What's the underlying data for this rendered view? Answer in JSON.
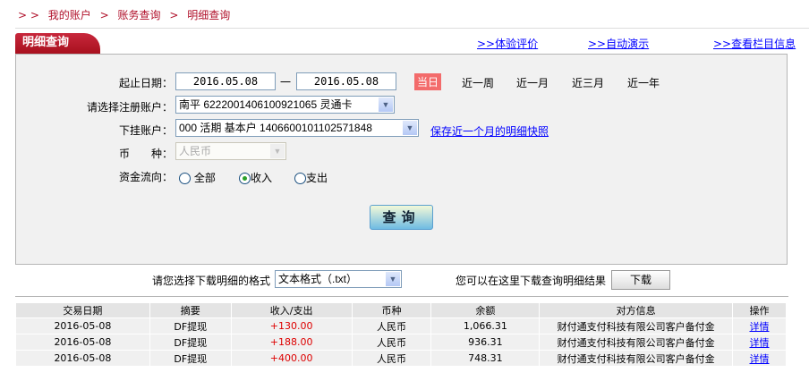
{
  "breadcrumb": {
    "prefix": "> >",
    "items": [
      "我的账户",
      "账务查询",
      "明细查询"
    ],
    "sep": ">"
  },
  "tab_title": "明细查询",
  "top_links": [
    ">>体验评价",
    ">>自动演示",
    ">>查看栏目信息"
  ],
  "form": {
    "date_label": "起止日期：",
    "start_date": "2016.05.08",
    "dash": "一",
    "end_date": "2016.05.08",
    "quick_ranges": [
      "当日",
      "近一周",
      "近一月",
      "近三月",
      "近一年"
    ],
    "account_label": "请选择注册账户：",
    "account_value": "南平 6222001406100921065 灵通卡",
    "sub_account_label": "下挂账户：",
    "sub_account_value": "000 活期 基本户 1406600101102571848",
    "snapshot_link": "保存近一个月的明细快照",
    "currency_label": "币　　种：",
    "currency_value": "人民币",
    "flow_label": "资金流向：",
    "flow_options": [
      "全部",
      "收入",
      "支出"
    ],
    "flow_selected": "收入",
    "query_button": "查询"
  },
  "download": {
    "format_label": "请您选择下载明细的格式",
    "format_value": "文本格式（.txt）",
    "hint": "您可以在这里下载查询明细结果",
    "button": "下载"
  },
  "table": {
    "headers": [
      "交易日期",
      "摘要",
      "收入/支出",
      "币种",
      "余额",
      "对方信息",
      "操作"
    ],
    "rows": [
      [
        "2016-05-08",
        "DF提现",
        "+130.00",
        "人民币",
        "1,066.31",
        "财付通支付科技有限公司客户备付金",
        "详情"
      ],
      [
        "2016-05-08",
        "DF提现",
        "+188.00",
        "人民币",
        "936.31",
        "财付通支付科技有限公司客户备付金",
        "详情"
      ],
      [
        "2016-05-08",
        "DF提现",
        "+400.00",
        "人民币",
        "748.31",
        "财付通支付科技有限公司客户备付金",
        "详情"
      ]
    ]
  },
  "colors": {
    "brand_red": "#b0102a",
    "today_bg": "#f36b6b",
    "amount": "#dd0000",
    "link": "#0000ff"
  }
}
